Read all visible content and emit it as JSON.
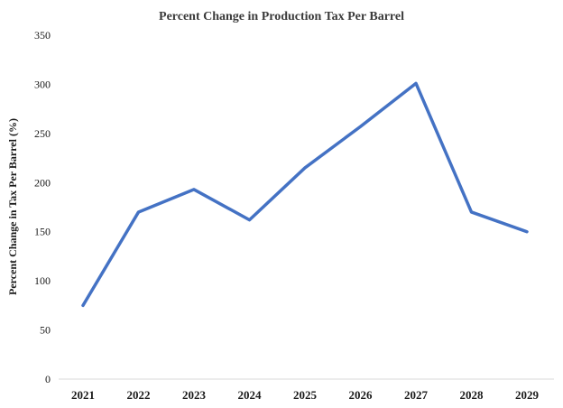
{
  "chart_data": {
    "type": "line",
    "title": "Percent Change in Production Tax Per Barrel",
    "ylabel": "Percent Change in Tax Per Barrel (%)",
    "xlabel": "",
    "categories": [
      "2021",
      "2022",
      "2023",
      "2024",
      "2025",
      "2026",
      "2027",
      "2028",
      "2029"
    ],
    "series": [
      {
        "name": "Percent Change in Tax Per Barrel",
        "values": [
          75,
          170,
          193,
          162,
          215,
          257,
          301,
          170,
          150
        ]
      }
    ],
    "ylim": [
      0,
      350
    ],
    "yticks": [
      0,
      50,
      100,
      150,
      200,
      250,
      300,
      350
    ],
    "grid": false,
    "legend_position": "none",
    "colors": {
      "line": "#4472C4",
      "axis_line": "#D9D9D9",
      "title_text": "#3B3B3B",
      "tick_text": "#1A1A1A",
      "background": "#FFFFFF"
    }
  }
}
